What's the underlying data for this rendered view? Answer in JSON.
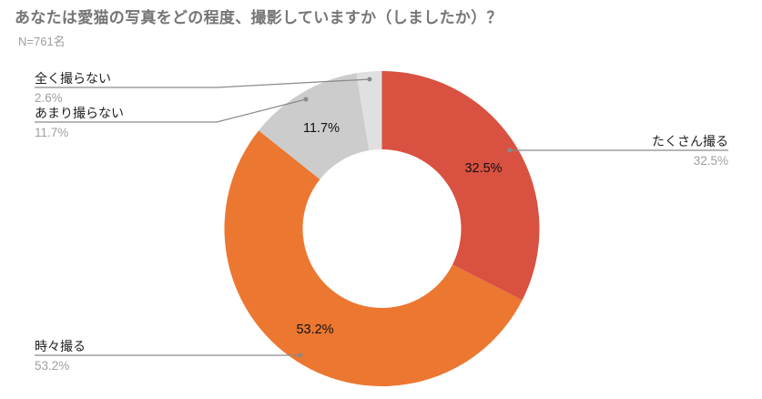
{
  "header": {
    "title": "あなたは愛猫の写真をどの程度、撮影していますか（しましたか）？",
    "subtitle": "N=761名"
  },
  "chart_data": {
    "type": "pie",
    "subtype": "donut",
    "title": "あなたは愛猫の写真をどの程度、撮影していますか（しましたか）？",
    "subtitle": "N=761名",
    "categories": [
      "たくさん撮る",
      "時々撮る",
      "あまり撮らない",
      "全く撮らない"
    ],
    "values": [
      32.5,
      53.2,
      11.7,
      2.6
    ],
    "unit": "%",
    "colors": [
      "#d95140",
      "#ec7731",
      "#cccccc",
      "#e0e0e0"
    ],
    "slice_labels": [
      "32.5%",
      "53.2%",
      "11.7%",
      ""
    ],
    "legend_position": "callout labels",
    "sample_size": 761
  },
  "labels": [
    {
      "name": "たくさん撮る",
      "pct": "32.5%"
    },
    {
      "name": "時々撮る",
      "pct": "53.2%"
    },
    {
      "name": "あまり撮らない",
      "pct": "11.7%"
    },
    {
      "name": "全く撮らない",
      "pct": "2.6%"
    }
  ],
  "slice_texts": {
    "s0": "32.5%",
    "s1": "53.2%",
    "s2": "11.7%"
  }
}
